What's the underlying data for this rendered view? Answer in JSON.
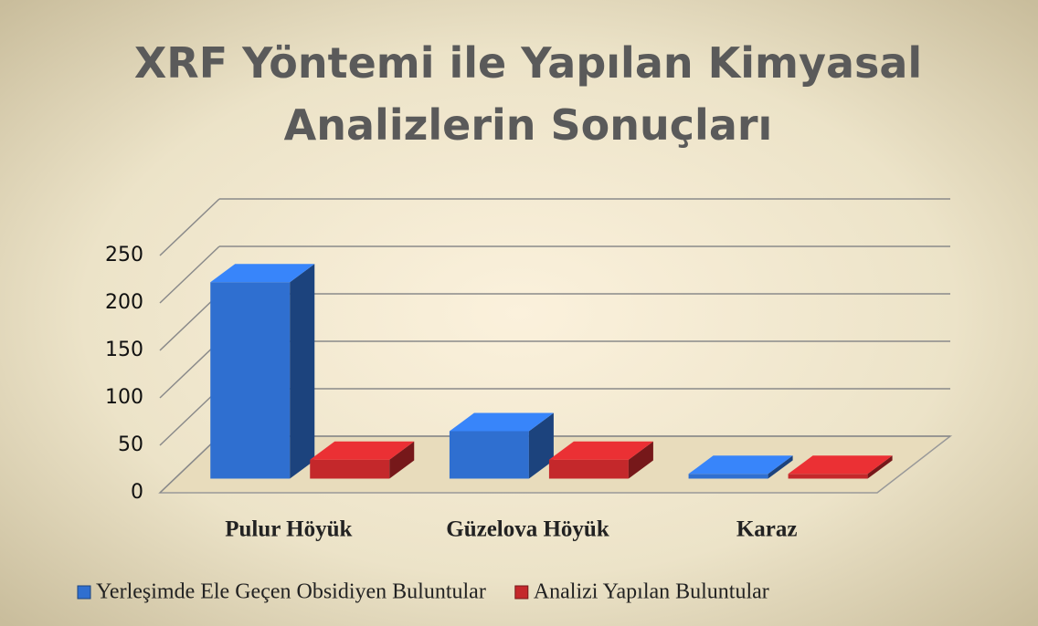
{
  "chart_data": {
    "type": "bar3d",
    "title": "XRF Yöntemi ile Yapılan Kimyasal Analizlerin Sonuçları",
    "categories": [
      "Pulur Höyük",
      "Güzelova Höyük",
      "Karaz"
    ],
    "series": [
      {
        "name": "Yerleşimde Ele Geçen Obsidiyen Buluntular",
        "color": "#2f6fd0",
        "values": [
          207,
          50,
          5
        ]
      },
      {
        "name": "Analizi Yapılan Buluntular",
        "color": "#c4282b",
        "values": [
          20,
          20,
          5
        ]
      }
    ],
    "ylim": [
      0,
      250
    ],
    "yticks": [
      0,
      50,
      100,
      150,
      200,
      250
    ],
    "grid": true,
    "legend": "bottom"
  }
}
